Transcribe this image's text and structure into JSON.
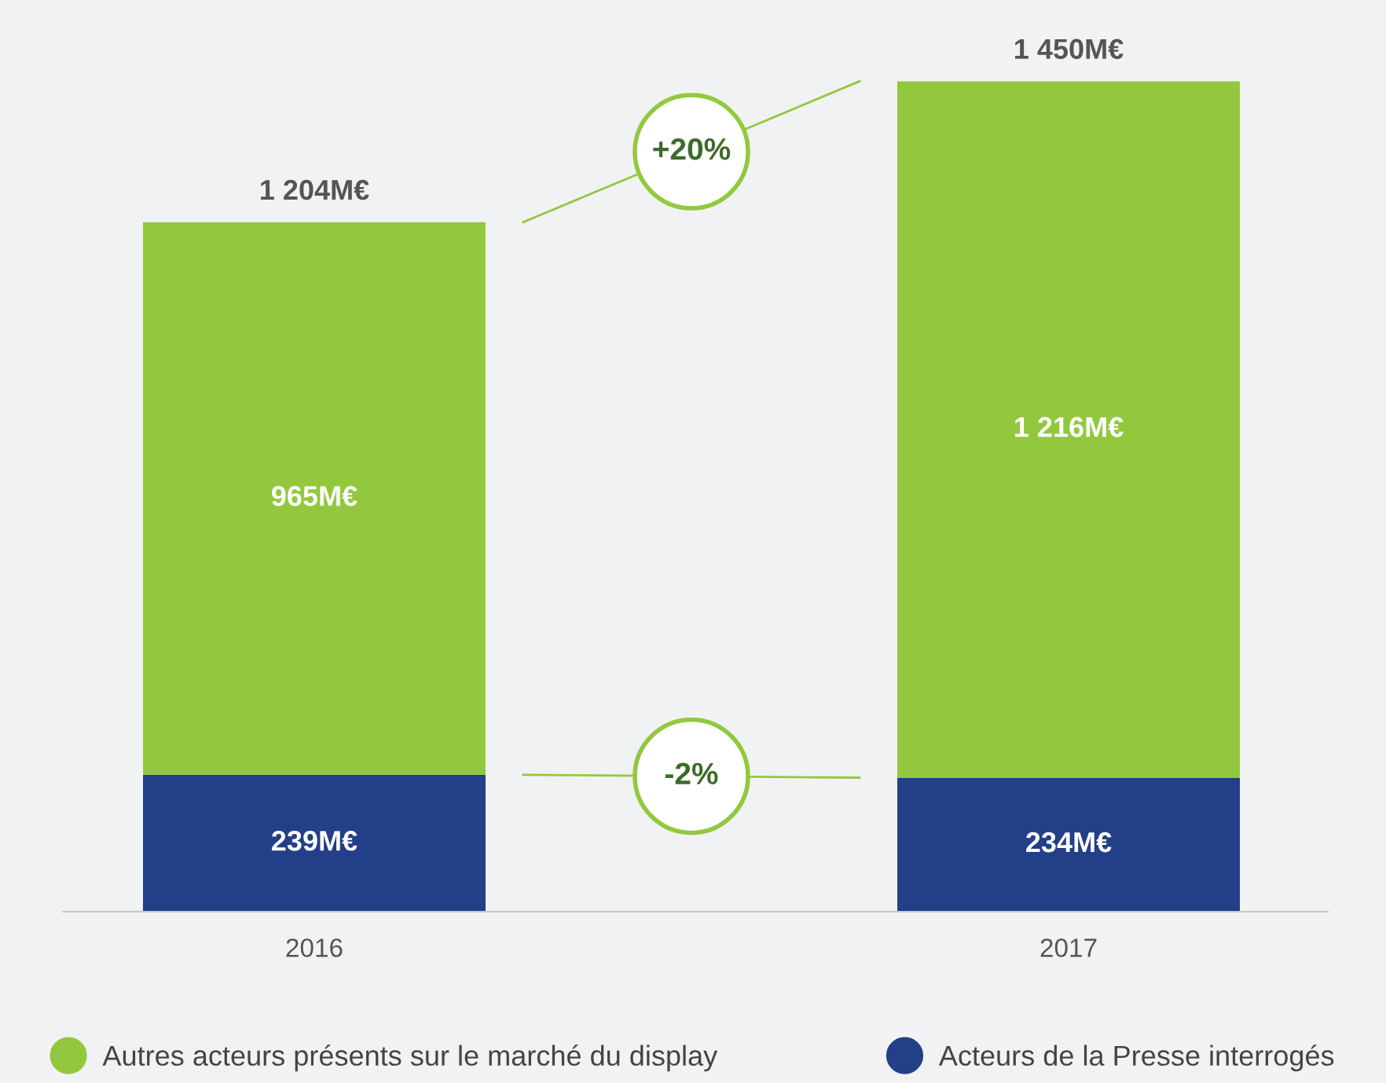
{
  "chart_data": {
    "type": "bar",
    "stacked": true,
    "categories": [
      "2016",
      "2017"
    ],
    "series": [
      {
        "name": "Acteurs de la Presse interrogés",
        "color": "#223f87",
        "values": [
          239,
          234
        ],
        "value_labels": [
          "239M€",
          "234M€"
        ]
      },
      {
        "name": "Autres acteurs présents sur le marché du display",
        "color": "#93c83e",
        "values": [
          965,
          1216
        ],
        "value_labels": [
          "965M€",
          "1 216M€"
        ]
      }
    ],
    "totals": [
      "1 204M€",
      "1 450M€"
    ],
    "annotations": [
      "-2%",
      "+20%"
    ],
    "legend": "bottom",
    "grid": false
  }
}
